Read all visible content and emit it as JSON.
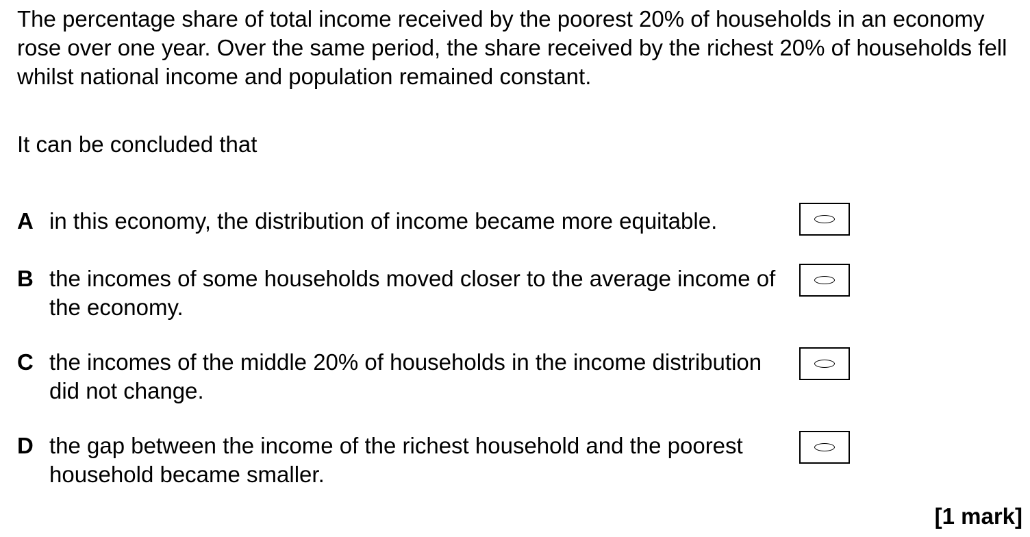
{
  "question": {
    "stem": "The percentage share of total income received by the poorest 20% of households in an economy rose over one year.  Over the same period, the share received by the richest 20% of households fell whilst national income and population remained constant.",
    "lead_in": "It can be concluded that",
    "options": [
      {
        "letter": "A",
        "text": "in this economy, the distribution of income became more equitable."
      },
      {
        "letter": "B",
        "text": "the incomes of some households moved closer to the average income of the economy."
      },
      {
        "letter": "C",
        "text": "the incomes of the middle 20% of households in the income distribution did not change."
      },
      {
        "letter": "D",
        "text": "the gap between the income of the richest household and the poorest household became smaller."
      }
    ],
    "marks": "[1 mark]"
  }
}
